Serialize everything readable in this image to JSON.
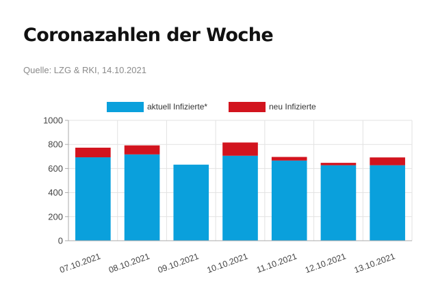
{
  "header": {
    "title": "Coronazahlen der Woche",
    "source": "Quelle: LZG & RKI, 14.10.2021"
  },
  "colors": {
    "series_current": "#0aa0dc",
    "series_new": "#d2141e",
    "grid": "#e2e2e2",
    "axis": "#aaaaaa"
  },
  "chart_data": {
    "type": "bar",
    "stacked": true,
    "categories": [
      "07.10.2021",
      "08.10.2021",
      "09.10.2021",
      "10.10.2021",
      "11.10.2021",
      "12.10.2021",
      "13.10.2021"
    ],
    "series": [
      {
        "name": "aktuell Infizierte*",
        "values": [
          693,
          717,
          632,
          706,
          666,
          627,
          627
        ]
      },
      {
        "name": "neu Infizierte",
        "values": [
          80,
          75,
          0,
          110,
          30,
          20,
          65
        ]
      }
    ],
    "ylim": [
      0,
      1000
    ],
    "yticks": [
      0,
      200,
      400,
      600,
      800,
      1000
    ],
    "xlabel": "",
    "ylabel": "",
    "grid": true,
    "legend_position": "top"
  }
}
